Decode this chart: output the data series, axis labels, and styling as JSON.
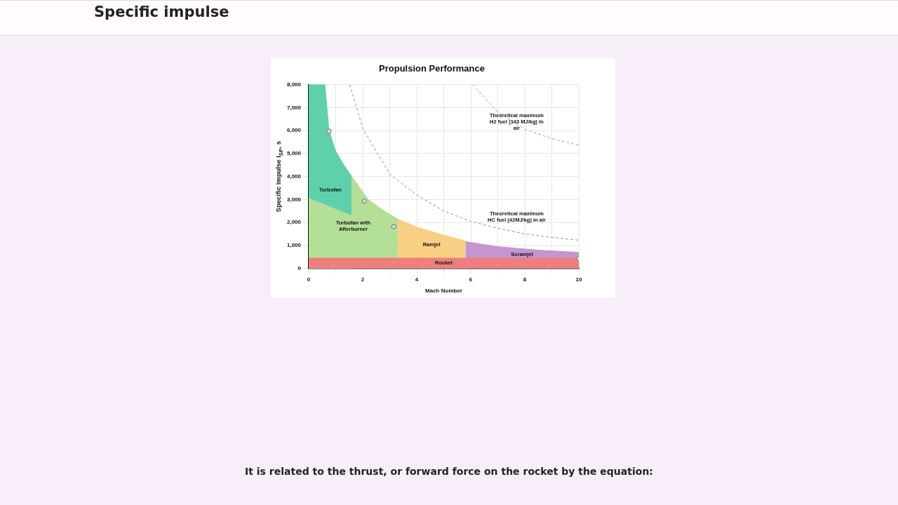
{
  "chart_data": {
    "type": "area",
    "title": "Propulsion Performance",
    "xlabel": "Mach Number",
    "ylabel": "Specific Impulse I$_{SP}$, s",
    "annotations": [
      "Specific impulse",
      "It is related to the thrust, or forward force on the rocket by the equation:"
    ],
    "xlim": [
      0,
      10
    ],
    "ylim": [
      0,
      8000
    ],
    "xticks": [
      0,
      {
        "value": 1,
        "label": null
      },
      2,
      {
        "value": 3,
        "label": null
      },
      4,
      {
        "value": 5,
        "label": null
      },
      6,
      {
        "value": 7,
        "label": null
      },
      8,
      {
        "value": 9,
        "label": null
      },
      10
    ],
    "yticks": [
      {
        "value": 0,
        "label": "0"
      },
      {
        "value": 1000,
        "label": "1,000"
      },
      {
        "value": 2000,
        "label": "2,000"
      },
      {
        "value": 3000,
        "label": "3,000"
      },
      {
        "value": 4000,
        "label": "4,000"
      },
      {
        "value": 5000,
        "label": "5,000"
      },
      {
        "value": 6000,
        "label": "6,000"
      },
      {
        "value": 7000,
        "label": "7,000"
      },
      {
        "value": 8000,
        "label": "8,000"
      }
    ],
    "grid": true,
    "legend": false,
    "series": [
      {
        "name": "Turbofan",
        "color": "#5fd0ac",
        "x": [
          0,
          0.6,
          0.75,
          1,
          1.3,
          1.6
        ],
        "values": [
          8000,
          8000,
          6000,
          5100,
          4500,
          4000
        ]
      },
      {
        "name": "Turbofan with Afterburner",
        "color": "#b3df97",
        "x": [
          0,
          1.6,
          1.6,
          2.2,
          2.8,
          3.3
        ],
        "values": [
          3050,
          2300,
          4000,
          3000,
          2500,
          2150
        ]
      },
      {
        "name": "Ramjet",
        "color": "#f9cf83",
        "x": [
          3.3,
          4,
          5,
          5.8
        ],
        "values": [
          2150,
          1800,
          1450,
          1200
        ]
      },
      {
        "name": "Scramjet",
        "color": "#c595d0",
        "x": [
          5.8,
          7,
          8.5,
          10
        ],
        "values": [
          1170,
          950,
          800,
          700
        ]
      },
      {
        "name": "Rocket",
        "color": "#ef7f7f",
        "x": [
          0,
          10
        ],
        "values": [
          450,
          450
        ]
      },
      {
        "name": "Theoretical maximum HC fuel (42MJ/kg) in air",
        "type": "line",
        "color": "#9b8fb0",
        "line_style": "dashed",
        "marker": "none",
        "x": [
          1.52,
          2,
          3,
          4,
          5,
          6,
          7,
          8,
          9,
          10
        ],
        "values": [
          8000,
          6100,
          4100,
          3200,
          2500,
          2050,
          1750,
          1510,
          1350,
          1230
        ]
      },
      {
        "name": "Theoretical maximum H2 fuel (143 MJ/kg) in air",
        "type": "line",
        "color": "#a0b070",
        "line_style": "dashed",
        "marker": "none",
        "x": [
          6.07,
          7,
          8,
          9,
          10
        ],
        "values": [
          8000,
          6800,
          6060,
          5650,
          5360
        ]
      },
      {
        "type": "scatter",
        "color": "#888888",
        "marker": "circle",
        "x": [
          0.75,
          2.06,
          3.15,
          10
        ],
        "values": [
          5970,
          2930,
          1820,
          430
        ]
      }
    ]
  }
}
